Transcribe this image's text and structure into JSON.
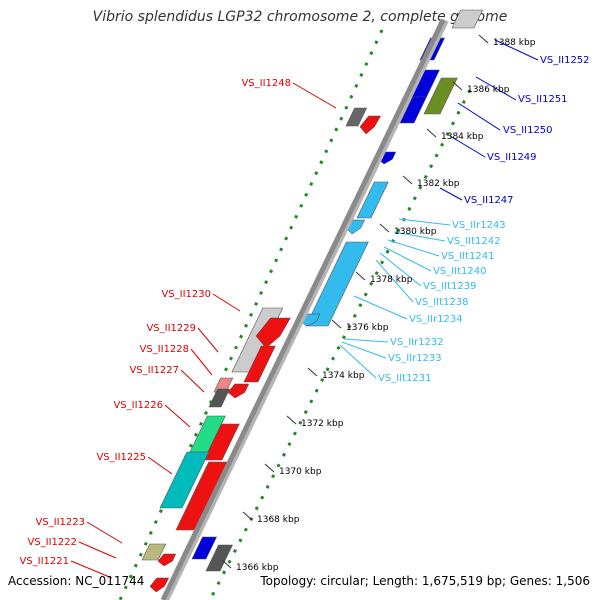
{
  "title": "Vibrio splendidus LGP32 chromosome 2, complete genome",
  "footer": {
    "accession": "Accession: NC_011744",
    "topology": "Topology: circular; Length: 1,675,519 bp; Genes: 1,506"
  },
  "colors": {
    "forward_gene": "#0000dd",
    "forward_rna": "#33bbee",
    "reverse_gene": "#ee1111",
    "backbone": "#8a8a8a",
    "dotted_track": "#228822"
  },
  "kbp_labels": [
    "1388 kbp",
    "1386 kbp",
    "1384 kbp",
    "1382 kbp",
    "1380 kbp",
    "1378 kbp",
    "1376 kbp",
    "1374 kbp",
    "1372 kbp",
    "1370 kbp",
    "1368 kbp",
    "1366 kbp"
  ],
  "gene_labels_right_blue": [
    "VS_II1252",
    "VS_II1251",
    "VS_II1250",
    "VS_II1249",
    "VS_II1247"
  ],
  "gene_labels_right_cyan": [
    "VS_IIr1243",
    "VS_IIt1242",
    "VS_IIt1241",
    "VS_IIt1240",
    "VS_IIt1239",
    "VS_IIt1238",
    "VS_IIr1234",
    "VS_IIr1232",
    "VS_IIr1233",
    "VS_IIt1231"
  ],
  "gene_labels_left_red": [
    "VS_II1248",
    "VS_II1230",
    "VS_II1229",
    "VS_II1228",
    "VS_II1227",
    "VS_II1226",
    "VS_II1225",
    "VS_II1223",
    "VS_II1222",
    "VS_II1221"
  ]
}
